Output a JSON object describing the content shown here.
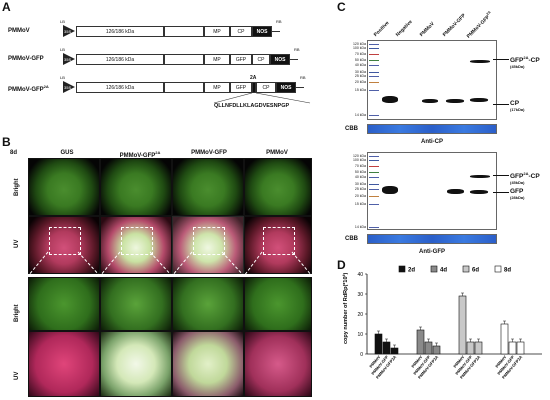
{
  "panels": {
    "A": "A",
    "B": "B",
    "C": "C",
    "D": "D"
  },
  "panelA": {
    "constructs": [
      {
        "name": "PMMoV",
        "lb": "LB",
        "rb": "RB",
        "promoter": "35S",
        "genes": [
          "126/186 kDa",
          "MP",
          "CP",
          "NOS"
        ]
      },
      {
        "name": "PMMoV-GFP",
        "lb": "LB",
        "rb": "RB",
        "promoter": "35S",
        "genes": [
          "126/186 kDa",
          "MP",
          "GFP",
          "CP",
          "NOS"
        ]
      },
      {
        "name": "PMMoV-GFP",
        "name_sup": "2A",
        "lb": "LB",
        "rb": "RB",
        "promoter": "35S",
        "genes": [
          "126/186 kDa",
          "MP",
          "GFP",
          "2A",
          "CP",
          "NOS"
        ]
      }
    ],
    "peptide": "QLLNFDLLKLAGDVESNPGP"
  },
  "panelB": {
    "day": "8d",
    "columns": [
      "GUS",
      "PMMoV-GFP",
      "PMMoV-GFP",
      "PMMoV"
    ],
    "column_sup": [
      "",
      "2A",
      "",
      ""
    ],
    "rows": [
      "Bright",
      "UV",
      "Bright",
      "UV"
    ]
  },
  "panelC": {
    "lanes": [
      "Positive",
      "Negative",
      "PMMoV",
      "PMMoV-GFP",
      "PMMoV-GFP"
    ],
    "lane_sup": [
      "",
      "",
      "",
      "",
      "2A"
    ],
    "ladder": [
      "120 kDa",
      "100 kDa",
      "70 kDa",
      "50 kDa",
      "40 kDa",
      "30 kDa",
      "25 kDa",
      "20 kDa",
      "15 kDa",
      "14 kDa"
    ],
    "blot1": {
      "labels": [
        {
          "main": "GFP",
          "sup": "2A",
          "rest": "-CP",
          "sub": "(45kDa)"
        },
        {
          "main": "CP",
          "sup": "",
          "rest": "",
          "sub": "(17kDa)"
        }
      ],
      "cbb": "CBB",
      "anti": "Anti-CP"
    },
    "blot2": {
      "labels": [
        {
          "main": "GFP",
          "sup": "2A",
          "rest": "-CP",
          "sub": "(45kDa)"
        },
        {
          "main": "GFP",
          "sup": "",
          "rest": "",
          "sub": "(28kDa)"
        }
      ],
      "cbb": "CBB",
      "anti": "Anti-GFP"
    }
  },
  "chart_data": {
    "type": "bar",
    "ylabel": "copy number of RdRp(*10",
    "ylabel_sup": "4",
    "ylabel_end": ")",
    "yticks": [
      0,
      10,
      20,
      30,
      40
    ],
    "ylim": [
      0,
      40
    ],
    "legend": [
      "2d",
      "4d",
      "6d",
      "8d"
    ],
    "legend_colors": [
      "#111111",
      "#8a8a8a",
      "#c8c8c8",
      "#ffffff"
    ],
    "groups": [
      {
        "name": "PMMoV",
        "values": [
          10,
          6,
          3
        ]
      },
      {
        "name": "PMMoV-GFP",
        "values": [
          12,
          6,
          4
        ]
      },
      {
        "name": "PMMoV-GFP2A",
        "values": [
          29,
          6,
          6
        ]
      },
      {
        "name": "PMMoV",
        "values": [
          15,
          6,
          6
        ]
      }
    ],
    "xlabels": [
      "PMMoV",
      "PMMoV-GFP",
      "PMMoV-GFP2A",
      "PMMoV",
      "PMMoV-GFP",
      "PMMoV-GFP2A",
      "PMMoV",
      "PMMoV-GFP",
      "PMMoV-GFP2A",
      "PMMoV",
      "PMMoV-GFP",
      "PMMoV-GFP2A"
    ]
  }
}
